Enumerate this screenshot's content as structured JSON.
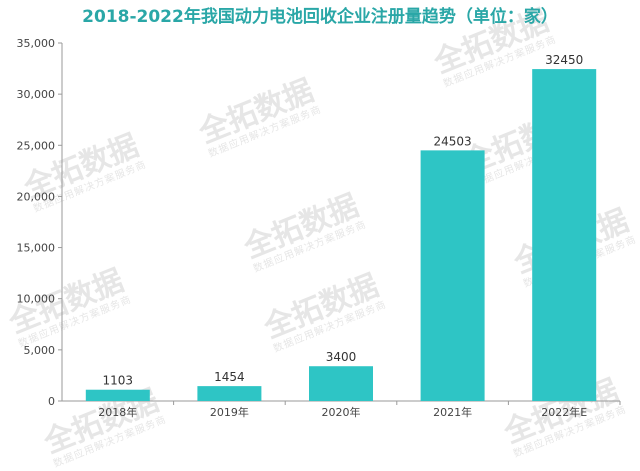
{
  "watermark": {
    "main": "全拓数据",
    "sub": "数据应用解决方案服务商"
  },
  "chart_data": {
    "type": "bar",
    "title": "2018-2022年我国动力电池回收企业注册量趋势（单位：家）",
    "xlabel": "",
    "ylabel": "",
    "categories": [
      "2018年",
      "2019年",
      "2020年",
      "2021年",
      "2022年E"
    ],
    "values": [
      1103,
      1454,
      3400,
      24503,
      32450
    ],
    "data_labels": [
      "1103",
      "1454",
      "3400",
      "24503",
      "32450"
    ],
    "ylim": [
      0,
      35000
    ],
    "y_ticks": [
      0,
      5000,
      10000,
      15000,
      20000,
      25000,
      30000,
      35000
    ],
    "y_tick_labels": [
      "0",
      "5,000",
      "10,000",
      "15,000",
      "20,000",
      "25,000",
      "30,000",
      "35,000"
    ],
    "grid": false,
    "legend": "none",
    "bar_color": "#2ec5c5",
    "title_color": "#2aa7a7"
  }
}
